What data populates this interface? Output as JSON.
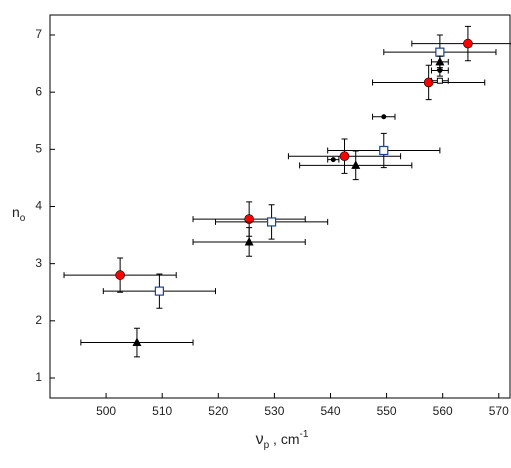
{
  "chart_data": {
    "type": "scatter",
    "xlabel": [
      "ν",
      "p",
      " , cm",
      "-1"
    ],
    "ylabel": [
      "n",
      "o"
    ],
    "xlim": [
      490,
      572
    ],
    "xticks": [
      500,
      510,
      520,
      530,
      540,
      550,
      560,
      570
    ],
    "ylim": [
      0.65,
      7.35
    ],
    "yticks": [
      1,
      2,
      3,
      4,
      5,
      6,
      7
    ],
    "grid": false,
    "series": [
      {
        "marker": "circle",
        "color": "#ff0000",
        "x": [
          502.5,
          525.5,
          542.5,
          557.5,
          564.5
        ],
        "values": [
          2.8,
          3.78,
          4.88,
          6.17,
          6.85
        ],
        "xerr": [
          10,
          10,
          10,
          10,
          10
        ],
        "yerr": [
          0.3,
          0.3,
          0.3,
          0.3,
          0.3
        ]
      },
      {
        "marker": "square",
        "color": "#1f3fa0",
        "x": [
          509.5,
          529.5,
          549.5,
          559.5
        ],
        "values": [
          2.52,
          3.73,
          4.98,
          6.7
        ],
        "xerr": [
          10,
          10,
          10,
          10
        ],
        "yerr": [
          0.3,
          0.3,
          0.3,
          0.3
        ]
      },
      {
        "marker": "triangle",
        "color": "#000000",
        "x": [
          505.5,
          525.5,
          544.5,
          559.5
        ],
        "values": [
          1.62,
          3.38,
          4.72,
          6.53
        ],
        "xerr": [
          10,
          10,
          10,
          1.5
        ],
        "yerr": [
          0.25,
          0.25,
          0.25,
          0.1
        ]
      },
      {
        "marker": "dot",
        "color": "#000000",
        "x": [
          540.5,
          549.5,
          559.5
        ],
        "values": [
          4.82,
          5.57,
          6.38
        ],
        "xerr": [
          1,
          2,
          1.5
        ],
        "yerr": [
          0,
          0,
          0.1
        ]
      },
      {
        "marker": "smallsquare",
        "color": "#000000",
        "x": [
          559.5
        ],
        "values": [
          6.2
        ],
        "xerr": [
          1.5
        ],
        "yerr": [
          0
        ]
      }
    ]
  }
}
